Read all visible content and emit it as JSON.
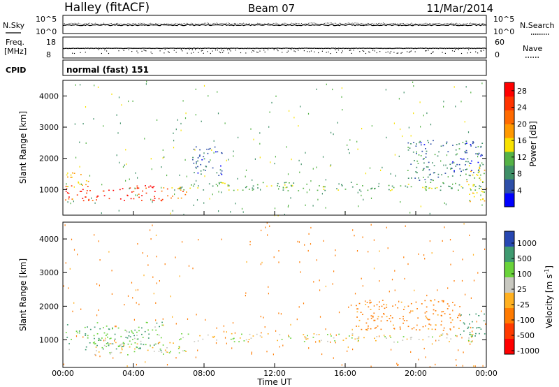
{
  "header": {
    "station": "Halley (fitACF)",
    "beam": "Beam 07",
    "date": "11/Mar/2014"
  },
  "top_panels": {
    "nsky_label": "N.Sky",
    "nsearch_label": "N.Search",
    "count_ticks": [
      "10^5",
      "10^0"
    ],
    "freq_label_1": "Freq.",
    "freq_label_2": "[MHz]",
    "freq_ticks": [
      "18",
      "8"
    ],
    "nave_label": "Nave",
    "nave_ticks": [
      "60",
      "0"
    ],
    "cpid_label": "CPID",
    "cpid_value": "normal (fast) 151"
  },
  "colors": {
    "power": [
      "#0000ff",
      "#2e4fa8",
      "#3f8f67",
      "#55b246",
      "#f8e100",
      "#ff9900",
      "#ff6a00",
      "#ff3300",
      "#ff0000"
    ],
    "velocity": [
      "#2747b2",
      "#3f9a70",
      "#69d33a",
      "#c8c8c0",
      "#ffb020",
      "#ff7a00",
      "#ff3a00",
      "#ff0000"
    ],
    "ground_scatter": "#c8c8c0"
  },
  "chart_data": [
    {
      "type": "heatmap",
      "name": "power",
      "xlabel": "",
      "ylabel": "Slant Range [km]",
      "xlim": [
        0,
        24
      ],
      "ylim": [
        180,
        4500
      ],
      "yticks": [
        1000,
        2000,
        3000,
        4000
      ],
      "colorbar": {
        "label": "Power [dB]",
        "ticks": [
          4,
          8,
          12,
          16,
          20,
          24,
          28
        ],
        "range": [
          0,
          30
        ]
      },
      "regions": [
        {
          "t": [
            0.1,
            5.6
          ],
          "r": [
            650,
            1150
          ],
          "value": 26
        },
        {
          "t": [
            0.0,
            1.5
          ],
          "r": [
            1100,
            1550
          ],
          "value": 17
        },
        {
          "t": [
            5.5,
            7.0
          ],
          "r": [
            700,
            1100
          ],
          "value": 20
        },
        {
          "t": [
            6.5,
            23.8
          ],
          "r": [
            980,
            1250
          ],
          "value": 11
        },
        {
          "t": [
            19.5,
            23.8
          ],
          "r": [
            1300,
            2600
          ],
          "value": 7
        },
        {
          "t": [
            7.3,
            9.0
          ],
          "r": [
            1400,
            2400
          ],
          "value": 6
        },
        {
          "t": [
            22.8,
            24.0
          ],
          "r": [
            600,
            1800
          ],
          "value": 14
        }
      ]
    },
    {
      "type": "heatmap",
      "name": "velocity",
      "xlabel": "Time UT",
      "ylabel": "Slant Range [km]",
      "xlim": [
        0,
        24
      ],
      "ylim": [
        180,
        4500
      ],
      "yticks": [
        1000,
        2000,
        3000,
        4000
      ],
      "x_tick_labels": [
        "00:00",
        "04:00",
        "08:00",
        "12:00",
        "16:00",
        "20:00",
        "00:00"
      ],
      "colorbar": {
        "label": "Velocity [m s^-1]",
        "ticks": [
          1000,
          500,
          100,
          25,
          -25,
          -100,
          -500,
          -1000
        ]
      },
      "regions": [
        {
          "t": [
            0.1,
            5.6
          ],
          "r": [
            700,
            1550
          ],
          "value": 80
        },
        {
          "t": [
            1.5,
            7.0
          ],
          "r": [
            550,
            950
          ],
          "value": 0
        },
        {
          "t": [
            6.5,
            23.5
          ],
          "r": [
            950,
            1200
          ],
          "value": 0
        },
        {
          "t": [
            16.5,
            22.5
          ],
          "r": [
            1300,
            2200
          ],
          "value": -150
        },
        {
          "t": [
            22.5,
            24.0
          ],
          "r": [
            1100,
            1800
          ],
          "value": 300
        }
      ]
    }
  ]
}
